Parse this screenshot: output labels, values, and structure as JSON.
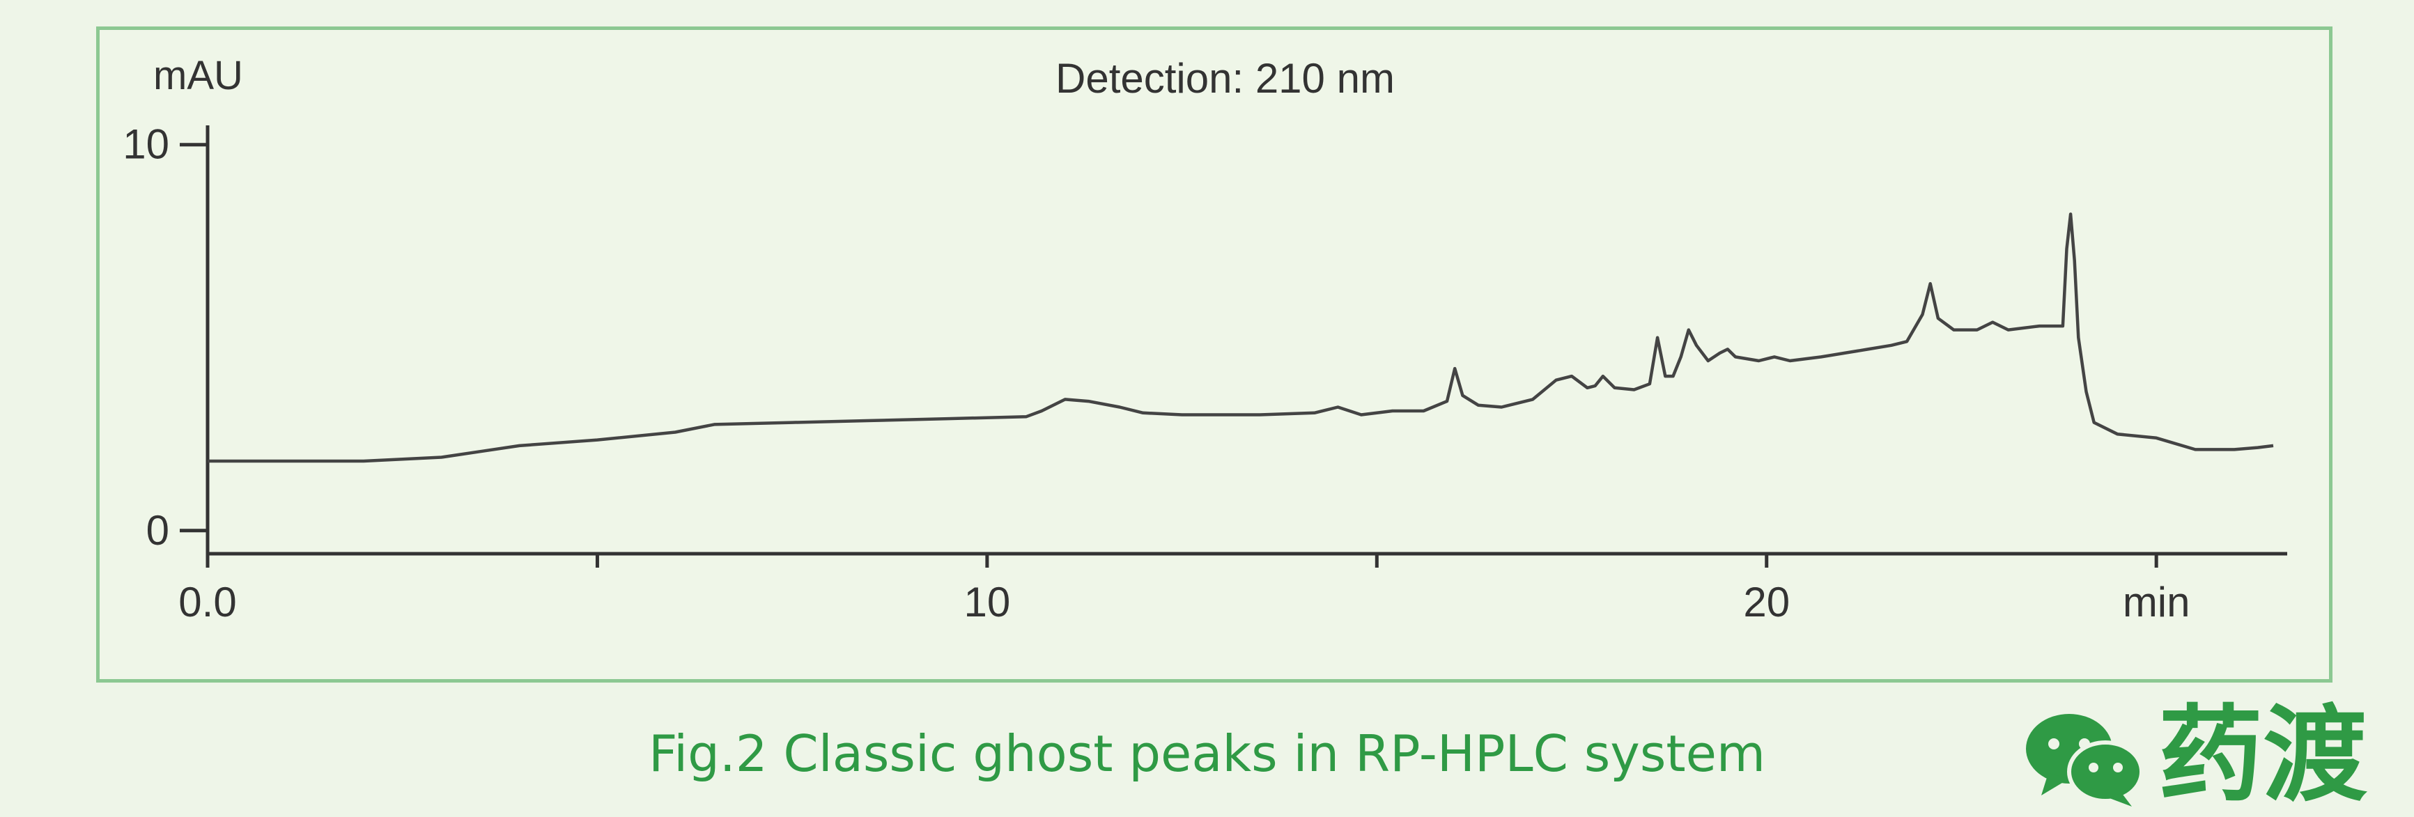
{
  "caption": "Fig.2 Classic ghost peaks in RP-HPLC system",
  "brand": {
    "text": "药渡",
    "icon": "wechat-icon",
    "color": "#2f9a45"
  },
  "colors": {
    "frame": "#8cc892",
    "trace": "#444444",
    "caption": "#2f9a45"
  },
  "chart_data": {
    "type": "line",
    "title": "Detection: 210 nm",
    "ylabel": "mAU",
    "xlabel": "min",
    "xlim": [
      0,
      26.5
    ],
    "ylim": [
      -0.6,
      10.5
    ],
    "y_ticks": [
      0,
      10
    ],
    "x_ticks": [
      0,
      5,
      10,
      15,
      20,
      25
    ],
    "x_tick_labels": [
      {
        "value": 0,
        "label": "0.0"
      },
      {
        "value": 10,
        "label": "10"
      },
      {
        "value": 20,
        "label": "20"
      },
      {
        "value": 25,
        "label": "min"
      }
    ],
    "grid": false,
    "series": [
      {
        "values": [
          [
            0,
            1.8
          ],
          [
            2,
            1.8
          ],
          [
            3,
            1.9
          ],
          [
            3.5,
            2.05
          ],
          [
            4,
            2.2
          ],
          [
            5,
            2.35
          ],
          [
            6,
            2.55
          ],
          [
            6.5,
            2.75
          ],
          [
            7.5,
            2.8
          ],
          [
            8.5,
            2.85
          ],
          [
            9.5,
            2.9
          ],
          [
            10.5,
            2.95
          ],
          [
            10.7,
            3.1
          ],
          [
            11,
            3.4
          ],
          [
            11.3,
            3.35
          ],
          [
            11.7,
            3.2
          ],
          [
            12,
            3.05
          ],
          [
            12.5,
            3.0
          ],
          [
            13.5,
            3.0
          ],
          [
            14.2,
            3.05
          ],
          [
            14.5,
            3.2
          ],
          [
            14.8,
            3.0
          ],
          [
            15.2,
            3.1
          ],
          [
            15.6,
            3.1
          ],
          [
            15.9,
            3.35
          ],
          [
            16.0,
            4.2
          ],
          [
            16.1,
            3.5
          ],
          [
            16.3,
            3.25
          ],
          [
            16.6,
            3.2
          ],
          [
            17,
            3.4
          ],
          [
            17.3,
            3.9
          ],
          [
            17.5,
            4.0
          ],
          [
            17.7,
            3.7
          ],
          [
            17.8,
            3.75
          ],
          [
            17.9,
            4.0
          ],
          [
            18.05,
            3.7
          ],
          [
            18.3,
            3.65
          ],
          [
            18.5,
            3.8
          ],
          [
            18.6,
            5.0
          ],
          [
            18.7,
            4.0
          ],
          [
            18.8,
            4.0
          ],
          [
            18.9,
            4.5
          ],
          [
            19.0,
            5.2
          ],
          [
            19.1,
            4.8
          ],
          [
            19.25,
            4.4
          ],
          [
            19.4,
            4.6
          ],
          [
            19.5,
            4.7
          ],
          [
            19.6,
            4.5
          ],
          [
            19.9,
            4.4
          ],
          [
            20.1,
            4.5
          ],
          [
            20.3,
            4.4
          ],
          [
            20.7,
            4.5
          ],
          [
            21,
            4.6
          ],
          [
            21.3,
            4.7
          ],
          [
            21.6,
            4.8
          ],
          [
            21.8,
            4.9
          ],
          [
            22.0,
            5.6
          ],
          [
            22.1,
            6.4
          ],
          [
            22.2,
            5.5
          ],
          [
            22.4,
            5.2
          ],
          [
            22.7,
            5.2
          ],
          [
            22.9,
            5.4
          ],
          [
            23.1,
            5.2
          ],
          [
            23.5,
            5.3
          ],
          [
            23.8,
            5.3
          ],
          [
            23.85,
            7.3
          ],
          [
            23.9,
            8.2
          ],
          [
            23.95,
            7.0
          ],
          [
            24.0,
            5.0
          ],
          [
            24.1,
            3.6
          ],
          [
            24.2,
            2.8
          ],
          [
            24.5,
            2.5
          ],
          [
            25,
            2.4
          ],
          [
            25.5,
            2.1
          ],
          [
            26,
            2.1
          ],
          [
            26.3,
            2.15
          ],
          [
            26.5,
            2.2
          ]
        ]
      }
    ]
  }
}
